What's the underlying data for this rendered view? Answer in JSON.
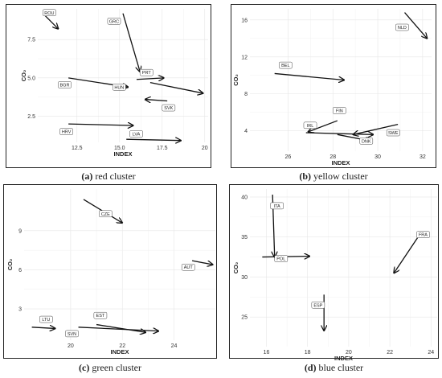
{
  "chart_data": [
    {
      "id": "a",
      "type": "vector",
      "caption_letter": "(a)",
      "caption_text": "red cluster",
      "xlabel": "INDEX",
      "ylabel": "CO₂",
      "xlim": [
        10.2,
        20.2
      ],
      "ylim": [
        0.8,
        9.5
      ],
      "xticks": [
        "12.5",
        "15.0",
        "17.5",
        "20"
      ],
      "xtick_values": [
        12.5,
        15.0,
        17.5,
        20.0
      ],
      "yticks": [
        "2.5",
        "5.0",
        "7.5"
      ],
      "ytick_values": [
        2.5,
        5.0,
        7.5
      ],
      "arrows": [
        {
          "label": "ROU",
          "x0": 10.5,
          "y0": 9.2,
          "x1": 11.4,
          "y1": 8.2
        },
        {
          "label": "GRC",
          "x0": 15.2,
          "y0": 9.2,
          "x1": 16.2,
          "y1": 5.4
        },
        {
          "label": "PRT",
          "x0": 16.0,
          "y0": 4.9,
          "x1": 17.6,
          "y1": 5.0
        },
        {
          "label": "BGR",
          "x0": 12.0,
          "y0": 5.0,
          "x1": 15.5,
          "y1": 4.4
        },
        {
          "label": "HUN",
          "x0": 16.8,
          "y0": 4.7,
          "x1": 19.9,
          "y1": 4.0
        },
        {
          "label": "SVK",
          "x0": 17.8,
          "y0": 3.5,
          "x1": 16.5,
          "y1": 3.6
        },
        {
          "label": "HRV",
          "x0": 12.0,
          "y0": 2.0,
          "x1": 15.8,
          "y1": 1.9
        },
        {
          "label": "LVA",
          "x0": 15.4,
          "y0": 1.0,
          "x1": 18.6,
          "y1": 0.92
        }
      ],
      "labels": [
        {
          "text": "ROU",
          "x": 10.5,
          "y": 9.25
        },
        {
          "text": "GRC",
          "x": 14.3,
          "y": 8.7
        },
        {
          "text": "PRT",
          "x": 16.2,
          "y": 5.35
        },
        {
          "text": "BGR",
          "x": 11.4,
          "y": 4.55
        },
        {
          "text": "HUN",
          "x": 14.6,
          "y": 4.4
        },
        {
          "text": "SVK",
          "x": 17.5,
          "y": 3.05
        },
        {
          "text": "HRV",
          "x": 11.5,
          "y": 1.5
        },
        {
          "text": "LVA",
          "x": 15.6,
          "y": 1.35
        }
      ]
    },
    {
      "id": "b",
      "type": "vector",
      "caption_letter": "(b)",
      "caption_text": "yellow cluster",
      "xlabel": "INDEX",
      "ylabel": "CO₂",
      "xlim": [
        24.3,
        32.4
      ],
      "ylim": [
        1.8,
        17.2
      ],
      "xticks": [
        "26",
        "28",
        "30",
        "32"
      ],
      "xtick_values": [
        26,
        28,
        30,
        32
      ],
      "yticks": [
        "4",
        "8",
        "12",
        "16"
      ],
      "ytick_values": [
        4,
        8,
        12,
        16
      ],
      "arrows": [
        {
          "label": "NLD",
          "x0": 31.2,
          "y0": 16.8,
          "x1": 32.2,
          "y1": 14.0
        },
        {
          "label": "BEL",
          "x0": 25.4,
          "y0": 10.2,
          "x1": 28.5,
          "y1": 9.5
        },
        {
          "label": "FIN",
          "x0": 28.2,
          "y0": 5.1,
          "x1": 26.9,
          "y1": 3.9
        },
        {
          "label": "IRL",
          "x0": 26.8,
          "y0": 3.8,
          "x1": 29.8,
          "y1": 3.6
        },
        {
          "label": "DNK",
          "x0": 28.2,
          "y0": 3.6,
          "x1": 29.7,
          "y1": 2.9
        },
        {
          "label": "SWE",
          "x0": 30.9,
          "y0": 4.7,
          "x1": 28.9,
          "y1": 3.6
        }
      ],
      "labels": [
        {
          "text": "NLD",
          "x": 30.8,
          "y": 15.2
        },
        {
          "text": "BEL",
          "x": 25.6,
          "y": 11.1
        },
        {
          "text": "FIN",
          "x": 28.0,
          "y": 6.2
        },
        {
          "text": "IRL",
          "x": 26.7,
          "y": 4.6
        },
        {
          "text": "DNK",
          "x": 29.2,
          "y": 2.9
        },
        {
          "text": "SWE",
          "x": 30.4,
          "y": 3.8
        }
      ]
    },
    {
      "id": "c",
      "type": "vector",
      "caption_letter": "(c)",
      "caption_text": "green cluster",
      "xlabel": "INDEX",
      "ylabel": "CO₂",
      "xlim": [
        18.2,
        25.6
      ],
      "ylim": [
        0.6,
        12.2
      ],
      "xticks": [
        "20",
        "22",
        "24"
      ],
      "xtick_values": [
        20,
        22,
        24
      ],
      "yticks": [
        "3",
        "6",
        "9"
      ],
      "ytick_values": [
        3,
        6,
        9
      ],
      "arrows": [
        {
          "label": "CZE",
          "x0": 20.5,
          "y0": 11.4,
          "x1": 22.0,
          "y1": 9.6
        },
        {
          "label": "AUT",
          "x0": 24.7,
          "y0": 6.7,
          "x1": 25.5,
          "y1": 6.4
        },
        {
          "label": "LTU",
          "x0": 18.5,
          "y0": 1.6,
          "x1": 19.4,
          "y1": 1.5
        },
        {
          "label": "EST",
          "x0": 21.0,
          "y0": 1.8,
          "x1": 22.9,
          "y1": 1.2
        },
        {
          "label": "SVN",
          "x0": 20.3,
          "y0": 1.6,
          "x1": 23.4,
          "y1": 1.3
        }
      ],
      "labels": [
        {
          "text": "CZE",
          "x": 21.1,
          "y": 10.3
        },
        {
          "text": "AUT",
          "x": 24.3,
          "y": 6.2
        },
        {
          "text": "LTU",
          "x": 18.8,
          "y": 2.2
        },
        {
          "text": "EST",
          "x": 20.9,
          "y": 2.5
        },
        {
          "text": "SVN",
          "x": 19.8,
          "y": 1.1
        }
      ]
    },
    {
      "id": "d",
      "type": "vector",
      "caption_letter": "(d)",
      "caption_text": "blue cluster",
      "xlabel": "INDEX",
      "ylabel": "CO₂",
      "xlim": [
        15.2,
        24.3
      ],
      "ylim": [
        21.3,
        41.0
      ],
      "xticks": [
        "16",
        "18",
        "20",
        "22",
        "24"
      ],
      "xtick_values": [
        16,
        18,
        20,
        22,
        24
      ],
      "yticks": [
        "25",
        "30",
        "35",
        "40"
      ],
      "ytick_values": [
        25,
        30,
        35,
        40
      ],
      "arrows": [
        {
          "label": "ITA",
          "x0": 16.3,
          "y0": 40.3,
          "x1": 16.4,
          "y1": 32.5
        },
        {
          "label": "FRA",
          "x0": 23.5,
          "y0": 35.5,
          "x1": 22.2,
          "y1": 30.5
        },
        {
          "label": "POL",
          "x0": 15.8,
          "y0": 32.5,
          "x1": 18.1,
          "y1": 32.6
        },
        {
          "label": "ESP",
          "x0": 18.8,
          "y0": 27.8,
          "x1": 18.8,
          "y1": 23.3
        }
      ],
      "labels": [
        {
          "text": "ITA",
          "x": 16.2,
          "y": 38.9
        },
        {
          "text": "FRA",
          "x": 23.3,
          "y": 35.3
        },
        {
          "text": "POL",
          "x": 16.4,
          "y": 32.3
        },
        {
          "text": "ESP",
          "x": 18.2,
          "y": 26.5
        }
      ]
    }
  ]
}
